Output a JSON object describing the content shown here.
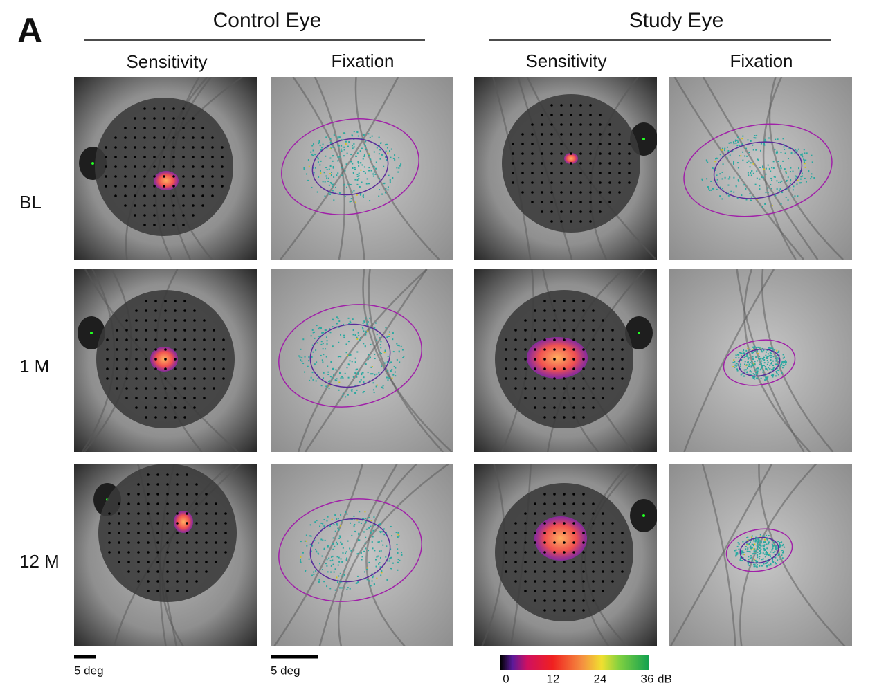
{
  "panel_label": "A",
  "groups": [
    {
      "title": "Control Eye",
      "columns": [
        "Sensitivity",
        "Fixation"
      ]
    },
    {
      "title": "Study Eye",
      "columns": [
        "Sensitivity",
        "Fixation"
      ]
    }
  ],
  "rows": [
    "BL",
    "1 M",
    "12 M"
  ],
  "scale_bars": [
    "5 deg",
    "5 deg"
  ],
  "colorbar": {
    "range": [
      0,
      36
    ],
    "ticks": [
      0,
      12,
      24,
      36
    ],
    "unit": "dB"
  }
}
